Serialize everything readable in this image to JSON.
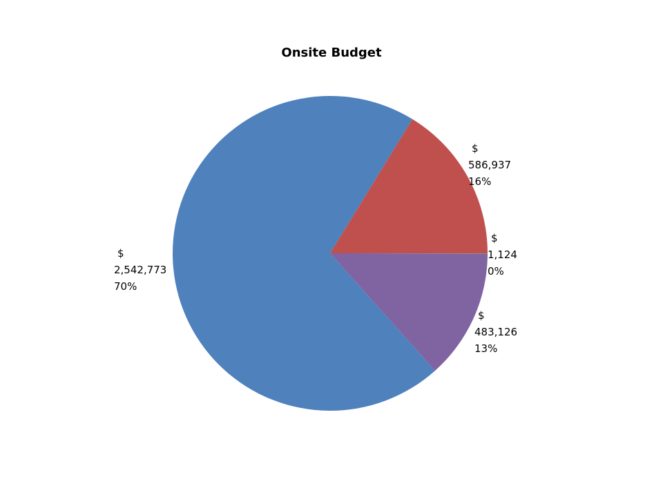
{
  "chart_data": {
    "type": "pie",
    "title": "Onsite Budget",
    "slices": [
      {
        "value": 586937,
        "currency": "$",
        "amount": "586,937",
        "percent": "16%",
        "color": "#C0504D"
      },
      {
        "value": 1124,
        "currency": "$",
        "amount": "1,124",
        "percent": "0%",
        "color": "#9BBB59"
      },
      {
        "value": 483126,
        "currency": "$",
        "amount": "483,126",
        "percent": "13%",
        "color": "#8064A2"
      },
      {
        "value": 2542773,
        "currency": "$",
        "amount": "2,542,773",
        "percent": "70%",
        "color": "#4F81BD"
      }
    ],
    "start": "right, counter-clockwise from the blue slice boundary",
    "legend": "none"
  }
}
